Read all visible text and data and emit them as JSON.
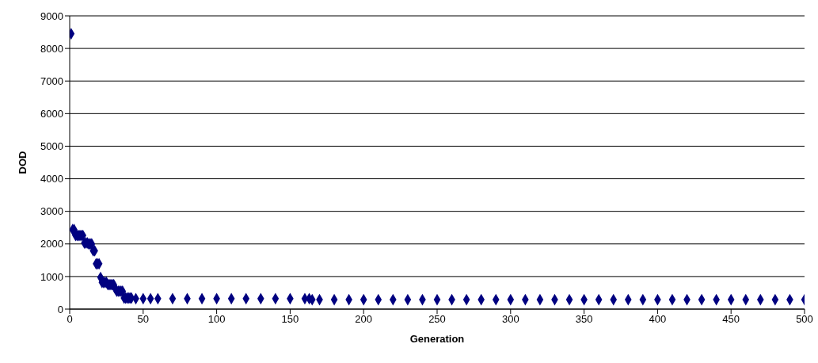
{
  "chart_data": {
    "type": "scatter",
    "xlabel": "Generation",
    "ylabel": "DOD",
    "xlim": [
      0,
      500
    ],
    "xticks": [
      0,
      50,
      100,
      150,
      200,
      250,
      300,
      350,
      400,
      450,
      500
    ],
    "ylim": [
      0,
      9000
    ],
    "yticks": [
      0,
      1000,
      2000,
      3000,
      4000,
      5000,
      6000,
      7000,
      8000,
      9000
    ],
    "grid": "y",
    "marker": "diamond",
    "series": [
      {
        "color": "#000080",
        "x": [
          1,
          2,
          3,
          4,
          5,
          6,
          7,
          8,
          9,
          10,
          11,
          12,
          13,
          14,
          15,
          16,
          17,
          18,
          19,
          20,
          21,
          22,
          23,
          24,
          25,
          26,
          27,
          28,
          29,
          30,
          31,
          32,
          33,
          34,
          35,
          36,
          37,
          38,
          39,
          40,
          41,
          42,
          45,
          50,
          55,
          60,
          70,
          80,
          90,
          100,
          110,
          120,
          130,
          140,
          150,
          160,
          163,
          165,
          170,
          180,
          190,
          200,
          210,
          220,
          230,
          240,
          250,
          260,
          270,
          280,
          290,
          300,
          310,
          320,
          330,
          340,
          350,
          360,
          370,
          380,
          390,
          400,
          410,
          420,
          430,
          440,
          450,
          460,
          470,
          480,
          490,
          500
        ],
        "values": [
          8450,
          2440,
          2440,
          2260,
          2260,
          2260,
          2260,
          2260,
          2260,
          2030,
          2030,
          2030,
          2000,
          2000,
          2000,
          1790,
          1790,
          1390,
          1390,
          1390,
          970,
          820,
          820,
          820,
          820,
          750,
          750,
          750,
          750,
          750,
          630,
          550,
          550,
          550,
          550,
          550,
          340,
          340,
          340,
          340,
          340,
          340,
          320,
          320,
          320,
          320,
          320,
          320,
          320,
          320,
          320,
          320,
          320,
          320,
          320,
          320,
          320,
          290,
          290,
          290,
          290,
          290,
          290,
          290,
          290,
          290,
          290,
          290,
          290,
          290,
          290,
          290,
          290,
          290,
          290,
          290,
          290,
          290,
          290,
          290,
          290,
          290,
          290,
          290,
          290,
          290,
          290,
          290,
          290,
          290,
          290,
          290
        ]
      }
    ]
  }
}
